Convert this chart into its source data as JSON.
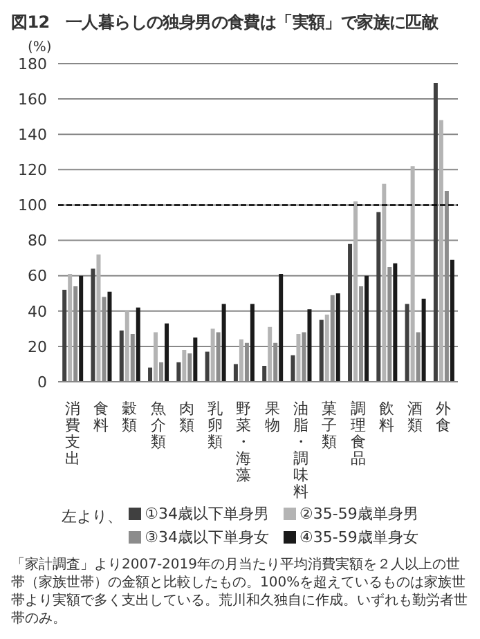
{
  "chart_data": {
    "type": "bar",
    "title": "図12　一人暮らしの独身男の食費は「実額」で家族に匹敵",
    "ylabel": "(%)",
    "categories": [
      "消費支出",
      "食料",
      "穀類",
      "魚介類",
      "肉類",
      "乳卵類",
      "野菜・海藻",
      "果物",
      "油脂・調味料",
      "菓子類",
      "調理食品",
      "飲料",
      "酒類",
      "外食"
    ],
    "series": [
      {
        "name": "①34歳以下単身男",
        "color": "#404040",
        "values": [
          52,
          64,
          29,
          8,
          11,
          17,
          10,
          9,
          15,
          35,
          78,
          96,
          44,
          169
        ]
      },
      {
        "name": "②35-59歳単身男",
        "color": "#b4b4b4",
        "values": [
          61,
          72,
          40,
          28,
          18,
          30,
          24,
          31,
          27,
          38,
          102,
          112,
          122,
          148
        ]
      },
      {
        "name": "③34歳以下単身女",
        "color": "#8c8c8c",
        "values": [
          54,
          48,
          27,
          11,
          16,
          28,
          22,
          22,
          28,
          49,
          54,
          65,
          28,
          108
        ]
      },
      {
        "name": "④35-59歳単身女",
        "color": "#1a1a1a",
        "values": [
          60,
          51,
          42,
          33,
          25,
          44,
          44,
          61,
          41,
          50,
          60,
          67,
          47,
          69
        ]
      }
    ],
    "ylim": [
      0,
      180
    ],
    "yticks": [
      0,
      20,
      40,
      60,
      80,
      100,
      120,
      140,
      160,
      180
    ],
    "grid": "y",
    "legend": "bottom",
    "legend_title": "左より、",
    "ref_lines": [
      {
        "axis": "y",
        "value": 100,
        "color": "#000000",
        "line_style": "dashed"
      }
    ],
    "annotations": [
      "「家計調査」より2007-2019年の月当たり平均消費実額を２人以上の世帯（家族世帯）の金額と比較したもの。100%を超えているものは家族世帯より実額で多く支出している。荒川和久独自に作成。いずれも勤労者世帯のみ。"
    ]
  }
}
